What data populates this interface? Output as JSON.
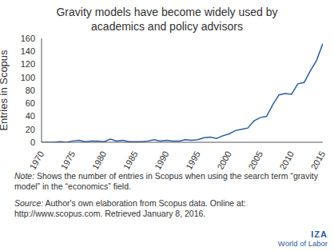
{
  "chart_data": {
    "type": "line",
    "title": "Gravity models have become widely used by academics and policy advisors",
    "y_label": "Entries in Scopus",
    "x": [
      1970,
      1971,
      1972,
      1973,
      1974,
      1975,
      1976,
      1977,
      1978,
      1979,
      1980,
      1981,
      1982,
      1983,
      1984,
      1985,
      1986,
      1987,
      1988,
      1989,
      1990,
      1991,
      1992,
      1993,
      1994,
      1995,
      1996,
      1997,
      1998,
      1999,
      2000,
      2001,
      2002,
      2003,
      2004,
      2005,
      2006,
      2007,
      2008,
      2009,
      2010,
      2011,
      2012,
      2013,
      2014,
      2015
    ],
    "series": [
      {
        "name": "Entries in Scopus",
        "color": "#2b5d9e",
        "values": [
          0,
          0,
          0,
          1,
          0,
          2,
          3,
          1,
          2,
          2,
          1,
          5,
          2,
          3,
          1,
          1,
          1,
          2,
          4,
          2,
          3,
          2,
          2,
          4,
          3,
          4,
          7,
          8,
          6,
          10,
          13,
          18,
          20,
          22,
          33,
          38,
          40,
          58,
          73,
          75,
          74,
          90,
          92,
          110,
          126,
          152
        ]
      }
    ],
    "xlim": [
      1970,
      2015
    ],
    "xticks": [
      1970,
      1975,
      1980,
      1985,
      1990,
      1995,
      2000,
      2005,
      2010,
      2015
    ],
    "ylim": [
      0,
      160
    ],
    "yticks": [
      0,
      20,
      40,
      60,
      80,
      100,
      120,
      140,
      160
    ],
    "grid": false,
    "note": {
      "label": "Note:",
      "text": "Shows the number of entries in Scopus when using the search term “gravity model” in the “economics” field."
    },
    "source": {
      "label": "Source:",
      "text": "Author's own elaboration from Scopus data. Online at: http://www.scopus.com. Retrieved January 8, 2016."
    },
    "logo": [
      "IZA",
      "World of Labor"
    ]
  }
}
